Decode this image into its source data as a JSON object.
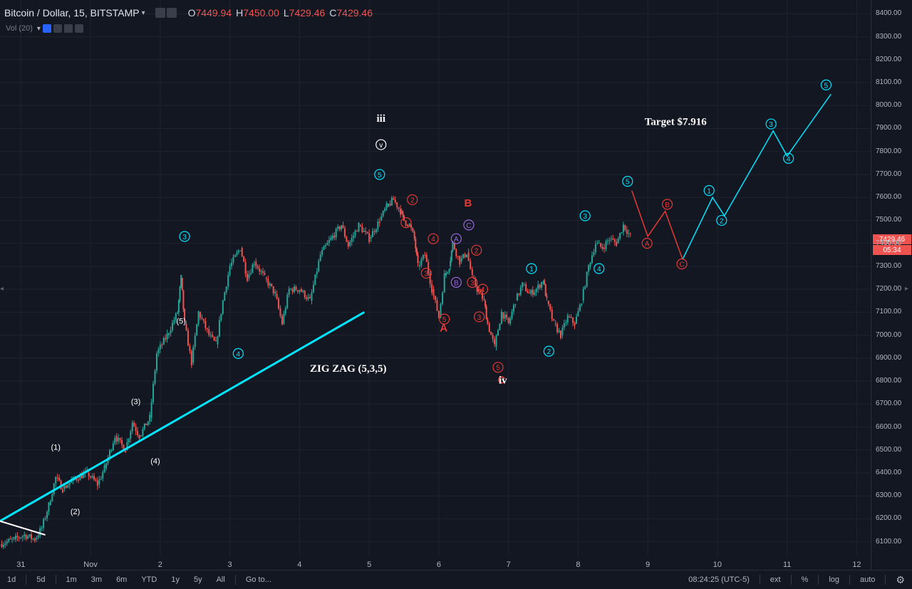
{
  "header": {
    "symbol": "Bitcoin / Dollar, 15, BITSTAMP",
    "o_label": "O",
    "o_value": "7449.94",
    "h_label": "H",
    "h_value": "7450.00",
    "l_label": "L",
    "l_value": "7429.46",
    "c_label": "C",
    "c_value": "7429.46",
    "volume_label": "Vol (20)"
  },
  "price_axis": {
    "last_price": "7429.46",
    "countdown": "05:34",
    "ticks": [
      "8400.00",
      "8300.00",
      "8200.00",
      "8100.00",
      "8000.00",
      "7900.00",
      "7800.00",
      "7700.00",
      "7600.00",
      "7500.00",
      "7400.00",
      "7300.00",
      "7200.00",
      "7100.00",
      "7000.00",
      "6900.00",
      "6800.00",
      "6700.00",
      "6600.00",
      "6500.00",
      "6400.00",
      "6300.00",
      "6200.00",
      "6100.00"
    ]
  },
  "time_axis": {
    "ticks": [
      {
        "label": "31",
        "t": 0.3
      },
      {
        "label": "Nov",
        "t": 1.3
      },
      {
        "label": "2",
        "t": 2.3
      },
      {
        "label": "3",
        "t": 3.3
      },
      {
        "label": "4",
        "t": 4.3
      },
      {
        "label": "5",
        "t": 5.3
      },
      {
        "label": "6",
        "t": 6.3
      },
      {
        "label": "7",
        "t": 7.3
      },
      {
        "label": "8",
        "t": 8.3
      },
      {
        "label": "9",
        "t": 9.3
      },
      {
        "label": "10",
        "t": 10.3
      },
      {
        "label": "11",
        "t": 11.3
      },
      {
        "label": "12",
        "t": 12.3
      }
    ]
  },
  "bottom_bar": {
    "ranges": [
      "1d",
      "5d",
      "1m",
      "3m",
      "6m",
      "YTD",
      "1y",
      "5y",
      "All"
    ],
    "goto": "Go to...",
    "clock": "08:24:25 (UTC-5)",
    "ext": "ext",
    "percent": "%",
    "log": "log",
    "auto": "auto"
  },
  "colors": {
    "background": "#131722",
    "up": "#26a69a",
    "down": "#ef5350",
    "cyan": "#00e5ff",
    "red": "#e53935",
    "purple": "#9c6ade",
    "white": "#ffffff"
  },
  "chart_data": {
    "type": "candlestick",
    "symbol": "BTC/USD",
    "interval": "15",
    "exchange": "BITSTAMP",
    "ylim": [
      6040,
      8460
    ],
    "xlim": [
      0,
      12.5
    ],
    "price_path": [
      [
        0.0,
        6090
      ],
      [
        0.2,
        6110
      ],
      [
        0.35,
        6130
      ],
      [
        0.5,
        6110
      ],
      [
        0.6,
        6160
      ],
      [
        0.7,
        6260
      ],
      [
        0.8,
        6380
      ],
      [
        0.9,
        6330
      ],
      [
        1.05,
        6370
      ],
      [
        1.25,
        6400
      ],
      [
        1.4,
        6350
      ],
      [
        1.5,
        6420
      ],
      [
        1.65,
        6560
      ],
      [
        1.8,
        6500
      ],
      [
        1.9,
        6620
      ],
      [
        2.0,
        6560
      ],
      [
        2.15,
        6640
      ],
      [
        2.25,
        6920
      ],
      [
        2.4,
        7000
      ],
      [
        2.55,
        7100
      ],
      [
        2.6,
        7250
      ],
      [
        2.65,
        7050
      ],
      [
        2.75,
        6880
      ],
      [
        2.85,
        7100
      ],
      [
        3.0,
        7000
      ],
      [
        3.1,
        6960
      ],
      [
        3.2,
        7150
      ],
      [
        3.3,
        7300
      ],
      [
        3.45,
        7380
      ],
      [
        3.55,
        7250
      ],
      [
        3.65,
        7320
      ],
      [
        3.8,
        7250
      ],
      [
        3.95,
        7180
      ],
      [
        4.05,
        7050
      ],
      [
        4.15,
        7200
      ],
      [
        4.3,
        7200
      ],
      [
        4.45,
        7150
      ],
      [
        4.6,
        7350
      ],
      [
        4.75,
        7420
      ],
      [
        4.9,
        7480
      ],
      [
        5.0,
        7390
      ],
      [
        5.15,
        7480
      ],
      [
        5.3,
        7420
      ],
      [
        5.45,
        7500
      ],
      [
        5.55,
        7560
      ],
      [
        5.65,
        7590
      ],
      [
        5.75,
        7540
      ],
      [
        5.8,
        7500
      ],
      [
        5.88,
        7480
      ],
      [
        5.95,
        7420
      ],
      [
        6.0,
        7300
      ],
      [
        6.1,
        7350
      ],
      [
        6.2,
        7200
      ],
      [
        6.3,
        7080
      ],
      [
        6.38,
        7260
      ],
      [
        6.45,
        7300
      ],
      [
        6.5,
        7400
      ],
      [
        6.6,
        7320
      ],
      [
        6.7,
        7360
      ],
      [
        6.78,
        7250
      ],
      [
        6.85,
        7200
      ],
      [
        6.95,
        7150
      ],
      [
        7.0,
        7050
      ],
      [
        7.1,
        6950
      ],
      [
        7.2,
        7100
      ],
      [
        7.3,
        7050
      ],
      [
        7.4,
        7150
      ],
      [
        7.5,
        7220
      ],
      [
        7.6,
        7180
      ],
      [
        7.7,
        7200
      ],
      [
        7.8,
        7240
      ],
      [
        7.85,
        7150
      ],
      [
        7.95,
        7050
      ],
      [
        8.05,
        7000
      ],
      [
        8.15,
        7080
      ],
      [
        8.25,
        7050
      ],
      [
        8.35,
        7150
      ],
      [
        8.45,
        7300
      ],
      [
        8.55,
        7400
      ],
      [
        8.65,
        7380
      ],
      [
        8.75,
        7420
      ],
      [
        8.85,
        7400
      ],
      [
        8.95,
        7480
      ],
      [
        9.05,
        7430
      ]
    ],
    "annotations": [
      {
        "text": "Target $7.916",
        "x": 9.7,
        "y": 7916
      },
      {
        "text": "ZIG ZAG (5,3,5)",
        "x": 5.0,
        "y": 6840
      }
    ],
    "wave_labels": [
      {
        "text": "(1)",
        "x": 0.8,
        "y": 6500,
        "style": "white-plain"
      },
      {
        "text": "(2)",
        "x": 1.08,
        "y": 6220,
        "style": "white-plain"
      },
      {
        "text": "(3)",
        "x": 1.95,
        "y": 6700,
        "style": "white-plain"
      },
      {
        "text": "(4)",
        "x": 2.23,
        "y": 6440,
        "style": "white-plain"
      },
      {
        "text": "(5)",
        "x": 2.6,
        "y": 7050,
        "style": "white-plain"
      },
      {
        "text": "3",
        "x": 2.65,
        "y": 7430,
        "style": "cyan-circle"
      },
      {
        "text": "4",
        "x": 3.42,
        "y": 6920,
        "style": "cyan-circle"
      },
      {
        "text": "5",
        "x": 5.45,
        "y": 7700,
        "style": "cyan-circle"
      },
      {
        "text": "iii",
        "x": 5.47,
        "y": 7830,
        "style": "white-roman"
      },
      {
        "text": "v",
        "x": 5.47,
        "y": 7830,
        "style": "white-circle"
      },
      {
        "text": "1",
        "x": 5.83,
        "y": 7490,
        "style": "red-circle"
      },
      {
        "text": "2",
        "x": 5.92,
        "y": 7590,
        "style": "red-circle"
      },
      {
        "text": "3",
        "x": 6.12,
        "y": 7270,
        "style": "red-circle"
      },
      {
        "text": "4",
        "x": 6.22,
        "y": 7420,
        "style": "red-circle"
      },
      {
        "text": "5",
        "x": 6.38,
        "y": 7070,
        "style": "red-circle"
      },
      {
        "text": "A",
        "x": 6.55,
        "y": 7420,
        "style": "purple-circle"
      },
      {
        "text": "B",
        "x": 6.55,
        "y": 7230,
        "style": "purple-circle"
      },
      {
        "text": "C",
        "x": 6.73,
        "y": 7480,
        "style": "purple-circle"
      },
      {
        "text": "2",
        "x": 6.84,
        "y": 7370,
        "style": "red-circle"
      },
      {
        "text": "3",
        "x": 6.78,
        "y": 7230,
        "style": "red-circle"
      },
      {
        "text": "4",
        "x": 6.93,
        "y": 7200,
        "style": "red-circle"
      },
      {
        "text": "3",
        "x": 6.88,
        "y": 7080,
        "style": "red-circle"
      },
      {
        "text": "5",
        "x": 7.15,
        "y": 6860,
        "style": "red-circle"
      },
      {
        "text": "1",
        "x": 7.63,
        "y": 7290,
        "style": "cyan-circle"
      },
      {
        "text": "2",
        "x": 7.88,
        "y": 6930,
        "style": "cyan-circle"
      },
      {
        "text": "3",
        "x": 8.4,
        "y": 7520,
        "style": "cyan-circle"
      },
      {
        "text": "4",
        "x": 8.6,
        "y": 7290,
        "style": "cyan-circle"
      },
      {
        "text": "A",
        "x": 6.37,
        "y": 7015,
        "style": "red-text"
      },
      {
        "text": "B",
        "x": 6.72,
        "y": 7560,
        "style": "red-text"
      },
      {
        "text": "C",
        "x": 7.2,
        "y": 6790,
        "style": "red-text"
      },
      {
        "text": "iv",
        "x": 7.22,
        "y": 6690,
        "style": "white-roman"
      },
      {
        "text": "5",
        "x": 9.01,
        "y": 7670,
        "style": "cyan-circle"
      },
      {
        "text": "A",
        "x": 9.29,
        "y": 7400,
        "style": "red-circle"
      },
      {
        "text": "B",
        "x": 9.58,
        "y": 7570,
        "style": "red-circle"
      },
      {
        "text": "C",
        "x": 9.79,
        "y": 7310,
        "style": "red-circle"
      },
      {
        "text": "1",
        "x": 10.18,
        "y": 7630,
        "style": "cyan-circle"
      },
      {
        "text": "2",
        "x": 10.36,
        "y": 7500,
        "style": "cyan-circle"
      },
      {
        "text": "3",
        "x": 11.07,
        "y": 7920,
        "style": "cyan-circle"
      },
      {
        "text": "4",
        "x": 11.32,
        "y": 7770,
        "style": "cyan-circle"
      },
      {
        "text": "5",
        "x": 11.86,
        "y": 8090,
        "style": "cyan-circle"
      }
    ],
    "trendlines": [
      {
        "color": "cyan",
        "points": [
          [
            0.0,
            6190
          ],
          [
            5.23,
            7100
          ]
        ],
        "width": 3
      },
      {
        "color": "white",
        "points": [
          [
            0.0,
            6190
          ],
          [
            0.65,
            6130
          ]
        ],
        "width": 2
      }
    ],
    "projection_red": [
      [
        9.07,
        7630
      ],
      [
        9.3,
        7430
      ],
      [
        9.55,
        7540
      ],
      [
        9.8,
        7330
      ]
    ],
    "projection_cyan": [
      [
        9.8,
        7330
      ],
      [
        10.23,
        7600
      ],
      [
        10.4,
        7520
      ],
      [
        11.1,
        7890
      ],
      [
        11.3,
        7780
      ],
      [
        11.93,
        8050
      ]
    ]
  }
}
